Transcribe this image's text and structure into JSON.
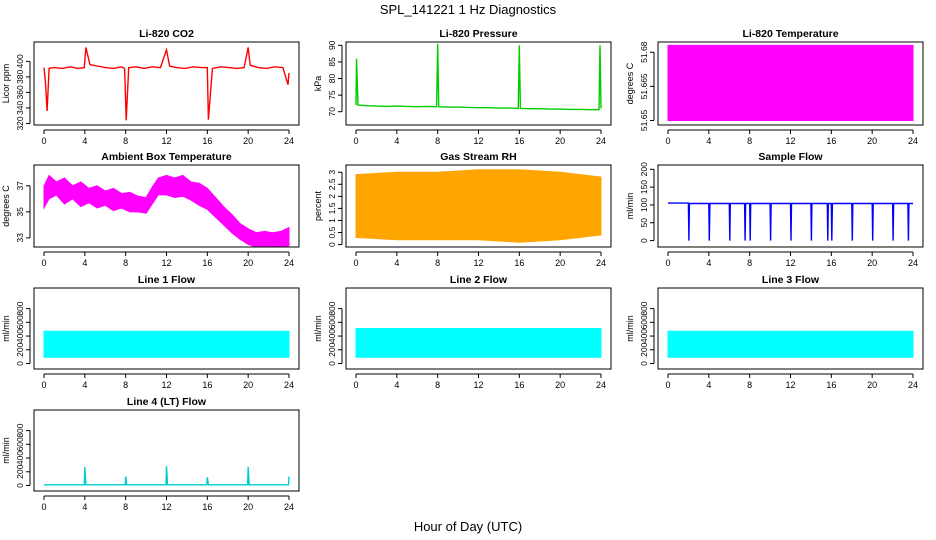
{
  "figure": {
    "title": "SPL_141221  1 Hz Diagnostics",
    "xlabel": "Hour of Day (UTC)"
  },
  "chart_data": [
    {
      "id": "co2",
      "type": "line",
      "title": "Li-820 CO2",
      "ylabel": "Licor ppm",
      "color": "#ff0000",
      "xlim": [
        0,
        24
      ],
      "xticks": [
        0,
        4,
        8,
        12,
        16,
        20,
        24
      ],
      "ylim": [
        318,
        425
      ],
      "yticks": [
        320,
        340,
        360,
        380,
        400
      ],
      "series": [
        {
          "name": "CO2",
          "x": [
            0,
            0.15,
            0.3,
            0.5,
            1.0,
            1.8,
            2.6,
            3.3,
            3.95,
            4.1,
            4.5,
            5.2,
            6.0,
            6.8,
            7.6,
            7.9,
            8.05,
            8.3,
            9.0,
            9.8,
            10.6,
            11.4,
            12.0,
            12.3,
            13.0,
            13.8,
            14.6,
            15.4,
            16.0,
            16.1,
            16.5,
            17.3,
            18.1,
            18.9,
            19.6,
            20.0,
            20.2,
            21.0,
            21.8,
            22.6,
            23.4,
            23.9,
            24.0
          ],
          "y": [
            392,
            372,
            336,
            391,
            392,
            391,
            393,
            391,
            392,
            418,
            396,
            394,
            392,
            391,
            393,
            391,
            324,
            392,
            393,
            391,
            393,
            392,
            415,
            394,
            392,
            391,
            393,
            392,
            392,
            325,
            391,
            393,
            392,
            391,
            392,
            418,
            395,
            392,
            391,
            393,
            392,
            370,
            385
          ]
        }
      ]
    },
    {
      "id": "pressure",
      "type": "line",
      "title": "Li-820 Pressure",
      "ylabel": "kPa",
      "color": "#00cc00",
      "xlim": [
        0,
        24
      ],
      "xticks": [
        0,
        4,
        8,
        12,
        16,
        20,
        24
      ],
      "ylim": [
        66,
        91
      ],
      "yticks": [
        70,
        75,
        80,
        85,
        90
      ],
      "series": [
        {
          "name": "Pressure",
          "x": [
            0,
            0.05,
            0.2,
            1,
            2,
            3,
            4,
            5,
            6,
            7,
            7.9,
            8.0,
            8.1,
            9,
            10,
            11,
            12,
            13,
            14,
            15,
            15.9,
            16.0,
            16.1,
            17,
            18,
            19,
            20,
            21,
            22,
            23,
            23.8,
            23.9,
            24.0
          ],
          "y": [
            72,
            86,
            72,
            71.8,
            71.7,
            71.6,
            71.7,
            71.6,
            71.5,
            71.6,
            71.5,
            90.5,
            71.5,
            71.4,
            71.4,
            71.3,
            71.2,
            71.2,
            71.1,
            71.1,
            71,
            90,
            71,
            70.9,
            70.9,
            70.8,
            70.8,
            70.7,
            70.7,
            70.6,
            70.6,
            90,
            71
          ]
        }
      ]
    },
    {
      "id": "temp",
      "type": "area",
      "title": "Li-820 Temperature",
      "ylabel": "degrees C",
      "color": "#ff00ff",
      "xlim": [
        0,
        24
      ],
      "xticks": [
        0,
        4,
        8,
        12,
        16,
        20,
        24
      ],
      "ylim": [
        51.648,
        51.6845
      ],
      "yticks": [
        51.65,
        51.665,
        51.68
      ],
      "series": [
        {
          "name": "Temperature",
          "x": [
            0,
            24
          ],
          "low": [
            51.65,
            51.65
          ],
          "high": [
            51.683,
            51.683
          ]
        }
      ]
    },
    {
      "id": "ambient",
      "type": "area",
      "title": "Ambient Box Temperature",
      "ylabel": "degrees C",
      "color": "#ff00ff",
      "xlim": [
        0,
        24
      ],
      "xticks": [
        0,
        4,
        8,
        12,
        16,
        20,
        24
      ],
      "ylim": [
        32.3,
        38.6
      ],
      "yticks": [
        33,
        35,
        37
      ],
      "series": [
        {
          "name": "Ambient",
          "x": [
            0,
            0.5,
            1.2,
            2,
            2.8,
            3.6,
            4.4,
            5.2,
            6.0,
            6.8,
            7.6,
            8.4,
            9.2,
            10.0,
            10.6,
            11.2,
            12.0,
            12.8,
            13.6,
            14.4,
            15.2,
            16.0,
            16.8,
            17.6,
            18.4,
            19.2,
            20.0,
            20.8,
            21.6,
            22.4,
            23.2,
            24.0
          ],
          "low": [
            35.3,
            36.0,
            36.3,
            35.6,
            36.0,
            35.4,
            35.7,
            35.3,
            35.5,
            35.1,
            35.3,
            35.0,
            35.0,
            34.9,
            35.6,
            36.3,
            36.3,
            36.1,
            36.2,
            35.9,
            35.5,
            35.2,
            34.6,
            34.0,
            33.4,
            32.9,
            32.5,
            32.3,
            32.4,
            32.3,
            32.3,
            32.4
          ],
          "high": [
            37.0,
            37.8,
            37.3,
            37.6,
            37.0,
            37.3,
            36.8,
            37.0,
            36.6,
            36.8,
            36.4,
            36.5,
            36.2,
            36.1,
            36.9,
            37.6,
            37.8,
            37.6,
            37.8,
            37.3,
            37.2,
            36.8,
            36.1,
            35.4,
            34.8,
            34.1,
            33.7,
            33.4,
            33.5,
            33.4,
            33.5,
            33.8
          ]
        }
      ]
    },
    {
      "id": "rh",
      "type": "area",
      "title": "Gas Stream RH",
      "ylabel": "percent",
      "color": "#ffa500",
      "xlim": [
        0,
        24
      ],
      "xticks": [
        0,
        4,
        8,
        12,
        16,
        20,
        24
      ],
      "ylim": [
        -0.1,
        3.3
      ],
      "yticks": [
        0.0,
        0.5,
        1.0,
        1.5,
        2.0,
        2.5,
        3.0
      ],
      "series": [
        {
          "name": "RH",
          "x": [
            0,
            4,
            8,
            12,
            16,
            20,
            24
          ],
          "low": [
            0.3,
            0.2,
            0.2,
            0.2,
            0.1,
            0.2,
            0.4
          ],
          "high": [
            2.9,
            3.0,
            3.0,
            3.1,
            3.1,
            3.0,
            2.8
          ]
        }
      ]
    },
    {
      "id": "sample",
      "type": "line",
      "title": "Sample Flow",
      "ylabel": "ml/min",
      "color": "#0000ff",
      "xlim": [
        0,
        24
      ],
      "xticks": [
        0,
        4,
        8,
        12,
        16,
        20,
        24
      ],
      "ylim": [
        -18,
        212
      ],
      "yticks": [
        0,
        50,
        100,
        150,
        200
      ],
      "series": [
        {
          "name": "Sample Flow",
          "x": [
            0,
            2.0,
            2.05,
            2.1,
            4,
            4.05,
            4.1,
            6,
            6.05,
            6.1,
            7.5,
            7.55,
            7.6,
            8,
            8.05,
            8.1,
            10,
            10.05,
            10.1,
            12,
            12.05,
            12.1,
            14,
            14.05,
            14.1,
            15.6,
            15.65,
            15.7,
            16,
            16.05,
            16.1,
            18,
            18.05,
            18.1,
            20,
            20.05,
            20.1,
            22,
            22.05,
            22.1,
            23.5,
            23.55,
            23.6,
            24
          ],
          "y": [
            105,
            105,
            0,
            104,
            104,
            0,
            104,
            104,
            0,
            104,
            104,
            0,
            104,
            104,
            0,
            104,
            104,
            0,
            104,
            104,
            0,
            104,
            104,
            0,
            104,
            104,
            0,
            104,
            104,
            0,
            104,
            104,
            0,
            104,
            104,
            0,
            104,
            104,
            0,
            104,
            104,
            0,
            104,
            104
          ]
        }
      ]
    },
    {
      "id": "line1",
      "type": "area",
      "title": "Line 1 Flow",
      "ylabel": "ml/min",
      "color": "#00ffff",
      "xlim": [
        0,
        24
      ],
      "xticks": [
        0,
        4,
        8,
        12,
        16,
        20,
        24
      ],
      "ylim": [
        -80,
        1100
      ],
      "yticks": [
        0,
        200,
        400,
        600,
        800
      ],
      "series": [
        {
          "name": "Line 1",
          "x": [
            0,
            24
          ],
          "low": [
            90,
            90
          ],
          "high": [
            470,
            470
          ]
        }
      ]
    },
    {
      "id": "line2",
      "type": "area",
      "title": "Line 2 Flow",
      "ylabel": "ml/min",
      "color": "#00ffff",
      "xlim": [
        0,
        24
      ],
      "xticks": [
        0,
        4,
        8,
        12,
        16,
        20,
        24
      ],
      "ylim": [
        -80,
        1100
      ],
      "yticks": [
        0,
        200,
        400,
        600,
        800
      ],
      "series": [
        {
          "name": "Line 2",
          "x": [
            0,
            24
          ],
          "low": [
            90,
            90
          ],
          "high": [
            510,
            510
          ]
        }
      ]
    },
    {
      "id": "line3",
      "type": "area",
      "title": "Line 3 Flow",
      "ylabel": "ml/min",
      "color": "#00ffff",
      "xlim": [
        0,
        24
      ],
      "xticks": [
        0,
        4,
        8,
        12,
        16,
        20,
        24
      ],
      "ylim": [
        -80,
        1100
      ],
      "yticks": [
        0,
        200,
        400,
        600,
        800
      ],
      "series": [
        {
          "name": "Line 3",
          "x": [
            0,
            24
          ],
          "low": [
            90,
            90
          ],
          "high": [
            470,
            470
          ]
        }
      ]
    },
    {
      "id": "line4",
      "type": "line",
      "title": "Line 4 (LT) Flow",
      "ylabel": "ml/min",
      "color": "#00cccc",
      "xlim": [
        0,
        24
      ],
      "xticks": [
        0,
        4,
        8,
        12,
        16,
        20,
        24
      ],
      "ylim": [
        -80,
        1100
      ],
      "yticks": [
        0,
        200,
        400,
        600,
        800
      ],
      "series": [
        {
          "name": "Line 4",
          "x": [
            0,
            3.95,
            4.0,
            4.1,
            7.95,
            8.0,
            8.1,
            11.95,
            12.0,
            12.1,
            15.95,
            16.0,
            16.1,
            19.95,
            20.0,
            20.1,
            23.95,
            24.0
          ],
          "y": [
            10,
            10,
            270,
            10,
            10,
            130,
            10,
            10,
            280,
            10,
            10,
            120,
            10,
            10,
            270,
            10,
            10,
            130
          ]
        }
      ]
    }
  ]
}
